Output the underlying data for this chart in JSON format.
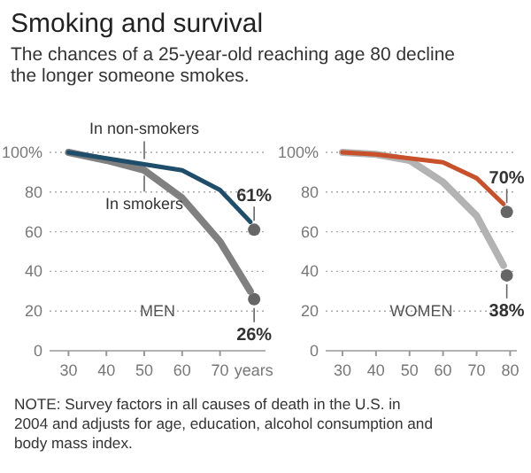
{
  "chart_data": [
    {
      "type": "line",
      "title": "Smoking and survival",
      "subtitle": "The chances of a 25-year-old reaching age 80 decline the longer someone smokes.",
      "annotations": [
        "MEN",
        "NOTE: Survey factors in all causes of death in the U.S. in 2004 and adjusts for age, education, alcohol consumption and body mass index."
      ],
      "xlim": [
        25,
        82
      ],
      "xticks": [
        30,
        40,
        50,
        60,
        70
      ],
      "xlabel": "years",
      "ylim": [
        0,
        100
      ],
      "yticks": [
        0,
        20,
        40,
        60,
        80,
        {
          "value": 100,
          "label": "100%"
        }
      ],
      "grid": "y",
      "series": [
        {
          "name": "In non-smokers",
          "color": "#1f4e6b",
          "x": [
            30,
            40,
            50,
            60,
            70,
            78
          ],
          "values": [
            100,
            97,
            94,
            91,
            81,
            65
          ]
        },
        {
          "name": "In smokers",
          "color": "#808080",
          "x": [
            30,
            40,
            50,
            60,
            70,
            78
          ],
          "values": [
            100,
            96,
            91,
            77,
            55,
            30
          ]
        },
        {
          "type": "scatter",
          "color": "#666666",
          "x": [
            79
          ],
          "values": [
            61
          ],
          "value_labels": [
            "61%"
          ]
        },
        {
          "type": "scatter",
          "color": "#666666",
          "x": [
            79
          ],
          "values": [
            26
          ],
          "value_labels": [
            "26%"
          ]
        }
      ]
    },
    {
      "type": "line",
      "annotations": [
        "WOMEN"
      ],
      "xlim": [
        25,
        82
      ],
      "xticks": [
        30,
        40,
        50,
        60,
        70,
        80
      ],
      "ylim": [
        0,
        100
      ],
      "yticks": [
        0,
        20,
        40,
        60,
        80,
        {
          "value": 100,
          "label": "100%"
        }
      ],
      "grid": "y",
      "series": [
        {
          "color": "#c8502a",
          "x": [
            30,
            40,
            50,
            60,
            70,
            78
          ],
          "values": [
            100,
            99,
            97,
            95,
            87,
            74
          ]
        },
        {
          "color": "#b3b3b3",
          "x": [
            30,
            40,
            50,
            60,
            70,
            78
          ],
          "values": [
            100,
            99,
            96,
            85,
            68,
            43
          ]
        },
        {
          "type": "scatter",
          "color": "#666666",
          "x": [
            79
          ],
          "values": [
            70
          ],
          "value_labels": [
            "70%"
          ]
        },
        {
          "type": "scatter",
          "color": "#666666",
          "x": [
            79
          ],
          "values": [
            38
          ],
          "value_labels": [
            "38%"
          ]
        }
      ]
    }
  ]
}
